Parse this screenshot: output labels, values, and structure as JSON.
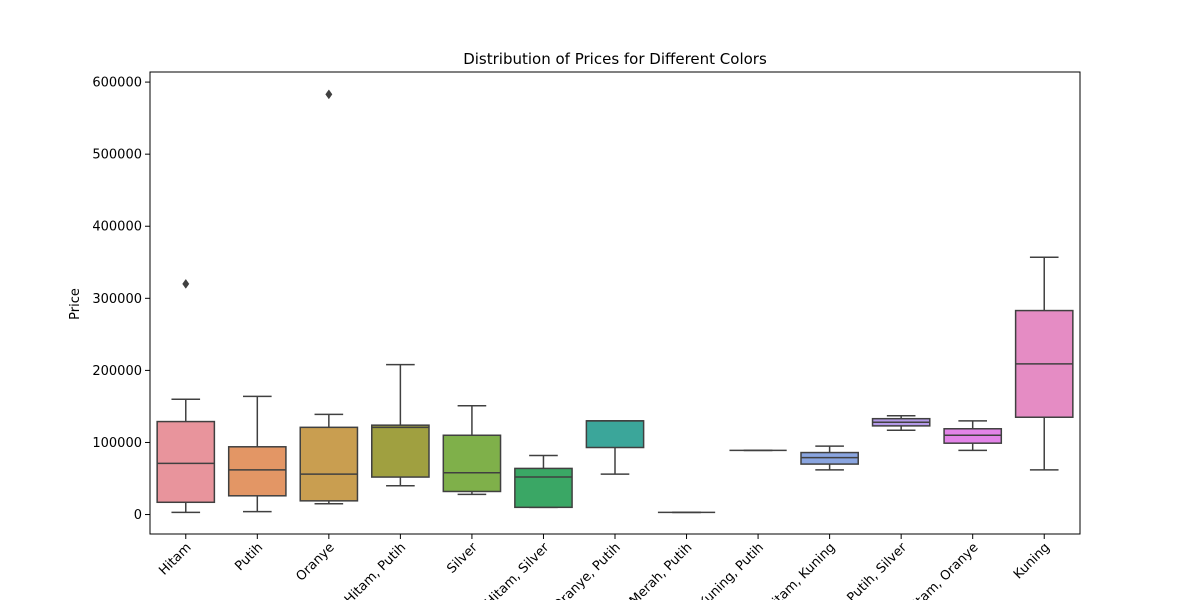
{
  "chart_data": {
    "type": "box",
    "title": "Distribution of Prices for Different Colors",
    "xlabel": "",
    "ylabel": "Price",
    "ylim": [
      -27000,
      614000
    ],
    "yticks": [
      0,
      100000,
      200000,
      300000,
      400000,
      500000,
      600000
    ],
    "grid": false,
    "categories": [
      "Hitam",
      "Putih",
      "Oranye",
      "Hitam, Putih",
      "Silver",
      "Hitam, Silver",
      "Oranye, Putih",
      "Merah, Putih",
      "Kuning, Putih",
      "Hitam, Kuning",
      "Putih, Silver",
      "Hitam, Oranye",
      "Kuning"
    ],
    "boxes": [
      {
        "category": "Hitam",
        "whisker_low": 3000,
        "q1": 17000,
        "median": 71000,
        "q3": 129000,
        "whisker_high": 160000,
        "outliers": [
          320000
        ],
        "color": "#e8949c"
      },
      {
        "category": "Putih",
        "whisker_low": 4000,
        "q1": 26000,
        "median": 62000,
        "q3": 94000,
        "whisker_high": 164000,
        "outliers": [],
        "color": "#e39665"
      },
      {
        "category": "Oranye",
        "whisker_low": 15000,
        "q1": 19000,
        "median": 56000,
        "q3": 121000,
        "whisker_high": 139000,
        "outliers": [
          583000
        ],
        "color": "#c99e50"
      },
      {
        "category": "Hitam, Putih",
        "whisker_low": 40000,
        "q1": 52000,
        "median": 121000,
        "q3": 124000,
        "whisker_high": 208000,
        "outliers": [],
        "color": "#a0a040"
      },
      {
        "category": "Silver",
        "whisker_low": 28000,
        "q1": 32000,
        "median": 58000,
        "q3": 110000,
        "whisker_high": 151000,
        "outliers": [],
        "color": "#7fb04a"
      },
      {
        "category": "Hitam, Silver",
        "whisker_low": 10000,
        "q1": 10000,
        "median": 52000,
        "q3": 64000,
        "whisker_high": 82000,
        "outliers": [],
        "color": "#3aa765"
      },
      {
        "category": "Oranye, Putih",
        "whisker_low": 56000,
        "q1": 93000,
        "median": 130000,
        "q3": 130000,
        "whisker_high": 130000,
        "outliers": [],
        "color": "#3ba69a"
      },
      {
        "category": "Merah, Putih",
        "whisker_low": 3000,
        "q1": 3000,
        "median": 3000,
        "q3": 3000,
        "whisker_high": 3000,
        "outliers": [],
        "color": "#3da6b3"
      },
      {
        "category": "Kuning, Putih",
        "whisker_low": 89000,
        "q1": 89000,
        "median": 89000,
        "q3": 89000,
        "whisker_high": 89000,
        "outliers": [],
        "color": "#45a3cc"
      },
      {
        "category": "Hitam, Kuning",
        "whisker_low": 62000,
        "q1": 70000,
        "median": 79000,
        "q3": 86000,
        "whisker_high": 95000,
        "outliers": [],
        "color": "#8aa5e0"
      },
      {
        "category": "Putih, Silver",
        "whisker_low": 117000,
        "q1": 123000,
        "median": 128000,
        "q3": 133000,
        "whisker_high": 137000,
        "outliers": [],
        "color": "#b49ae8"
      },
      {
        "category": "Hitam, Oranye",
        "whisker_low": 89000,
        "q1": 99000,
        "median": 110000,
        "q3": 119000,
        "whisker_high": 130000,
        "outliers": [],
        "color": "#e384e8"
      },
      {
        "category": "Kuning",
        "whisker_low": 62000,
        "q1": 135000,
        "median": 209000,
        "q3": 283000,
        "whisker_high": 357000,
        "outliers": [],
        "color": "#e58cc4"
      }
    ]
  }
}
